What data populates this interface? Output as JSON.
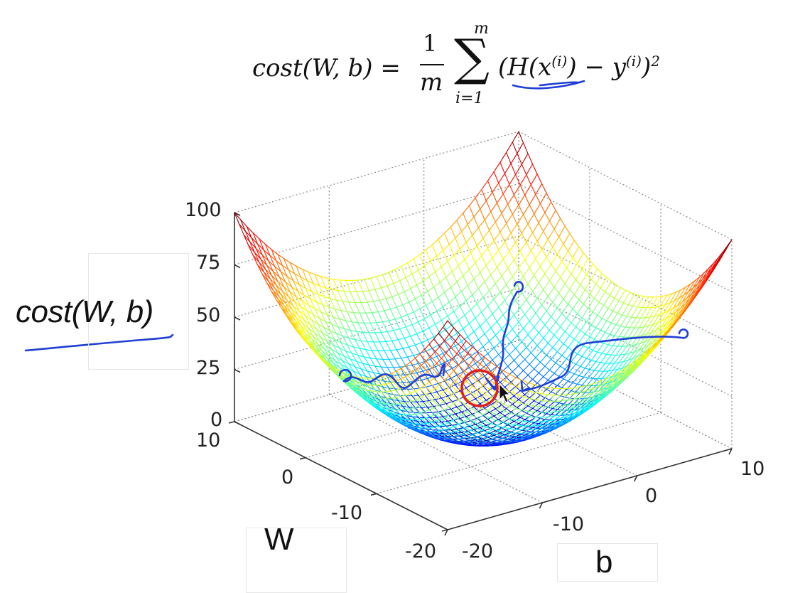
{
  "formula": {
    "lhs": "cost(W, b) =",
    "frac_num": "1",
    "frac_den": "m",
    "sum_top": "m",
    "sum_bottom": "i=1",
    "sum_symbol": "∑",
    "body_prefix": "(H(x",
    "body_sup1": "(i)",
    "body_mid": ") − y",
    "body_sup2": "(i)",
    "body_suffix": ")",
    "body_power": "2"
  },
  "chart_data": {
    "type": "surface",
    "title": "",
    "function": "cost(W, b) = ((W + 5)^2 + (b + 5)^2) / 4.5",
    "zlabel": "cost(W, b)",
    "xlabel": "W",
    "ylabel": "b",
    "xlim": [
      -20,
      10
    ],
    "ylim": [
      -20,
      10
    ],
    "zlim": [
      0,
      100
    ],
    "z_ticks": [
      "0",
      "25",
      "50",
      "75",
      "100"
    ],
    "w_ticks": [
      "-20",
      "-10",
      "0",
      "10"
    ],
    "b_ticks": [
      "-20",
      "-10",
      "0",
      "10"
    ],
    "grid": true,
    "colormap": "jet",
    "annotations": [
      {
        "type": "path",
        "label": "descent path from left",
        "color": "#1f3fd6"
      },
      {
        "type": "path",
        "label": "descent path from back",
        "color": "#1f3fd6"
      },
      {
        "type": "path",
        "label": "descent path from right",
        "color": "#1f3fd6"
      },
      {
        "type": "circle",
        "label": "minimum",
        "color": "#e01e1e"
      }
    ]
  },
  "colors": {
    "ink": "#1f3fd6",
    "minimum_circle": "#e01e1e",
    "grid": "#8a8a8a"
  }
}
